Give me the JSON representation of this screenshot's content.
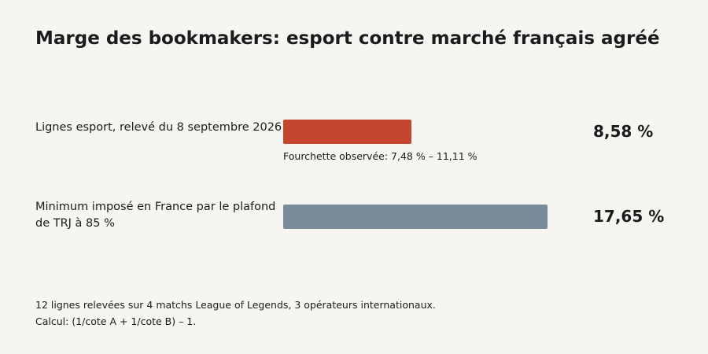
{
  "chart_data": {
    "type": "bar",
    "orientation": "horizontal",
    "title": "Marge des bookmakers: esport contre marché français agréé",
    "categories": [
      "Lignes esport, relevé du 8 septembre 2026",
      "Minimum imposé en France par le plafond de TRJ à 85 %"
    ],
    "values": [
      8.58,
      17.65
    ],
    "value_labels": [
      "8,58 %",
      "17,65 %"
    ],
    "colors": [
      "#c4462f",
      "#7b8b99"
    ],
    "annotations": [
      "Fourchette observée: 7,48 % – 11,11 %"
    ],
    "xlim": [
      0,
      17.65
    ],
    "grid": false
  },
  "footnotes": [
    "12 lignes relevées sur 4 matchs League of Legends, 3 opérateurs internationaux.",
    "Calcul: (1/cote A + 1/cote B) – 1."
  ]
}
